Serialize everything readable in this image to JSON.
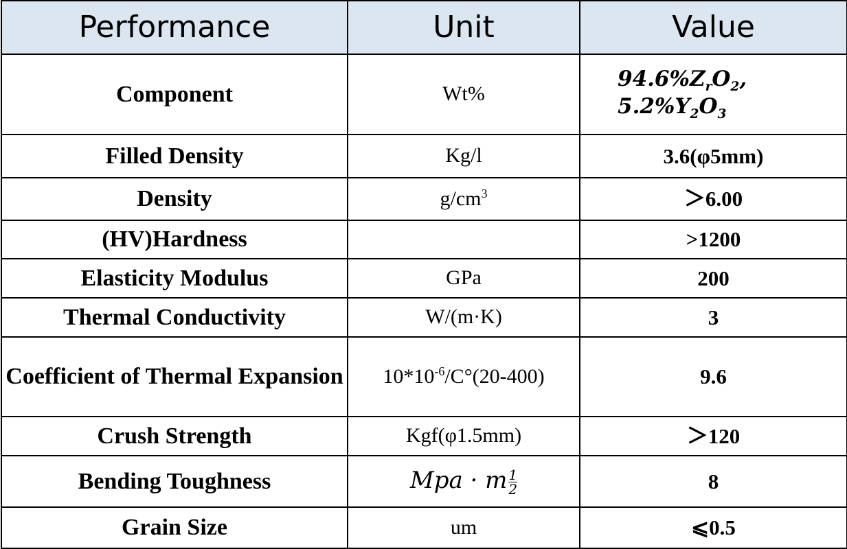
{
  "table": {
    "header": [
      "Performance",
      "Unit",
      "Value"
    ],
    "rows": [
      [
        "Component",
        "Wt%",
        [
          [
            "94.6%",
            {
              "sub": "r",
              "base": "Z"
            },
            {
              "sub": "2",
              "base": "O"
            },
            ","
          ],
          [
            "5.2%",
            {
              "sub": "2",
              "base": "Y"
            },
            {
              "sub": "3",
              "base": "O"
            }
          ]
        ]
      ],
      [
        "Filled Density",
        "Kg/l",
        "3.6(φ5mm)"
      ],
      [
        "Density",
        [
          "g/cm",
          {
            "sup": "3"
          }
        ],
        "＞6.00"
      ],
      [
        "(HV)Hardness",
        null,
        ">1200"
      ],
      [
        "Elasticity Modulus",
        "GPa",
        "200"
      ],
      [
        "Thermal Conductivity",
        "W/(m·K)",
        "3"
      ],
      [
        "Coefficient of Thermal Expansion",
        [
          "10*10",
          {
            "sup": "-6"
          },
          "/C°(20-400)"
        ],
        "9.6"
      ],
      [
        "Crush Strength",
        "Kgf(φ1.5mm)",
        "＞120"
      ],
      [
        "Bending Toughness",
        [
          "Mpa · m",
          {
            "frac": [
              "1",
              "2"
            ]
          }
        ],
        "8"
      ],
      [
        "Grain Size",
        "um",
        "⩽0.5"
      ]
    ]
  }
}
